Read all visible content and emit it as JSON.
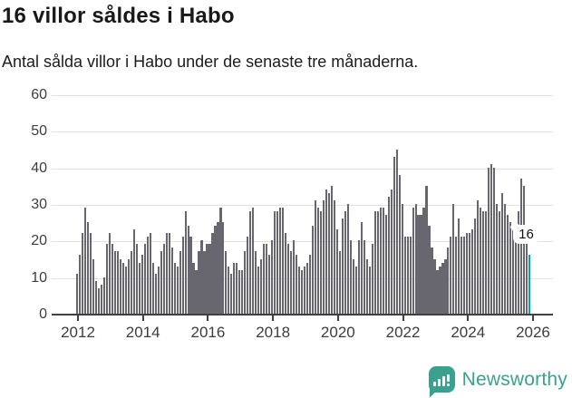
{
  "header": {
    "title": "16 villor såldes i Habo",
    "subtitle": "Antal sålda villor i Habo under de senaste tre månaderna."
  },
  "chart_data": {
    "type": "bar",
    "title": "16 villor såldes i Habo",
    "subtitle": "Antal sålda villor i Habo under de senaste tre månaderna.",
    "x_start_year": 2012,
    "frequency": "monthly",
    "values": [
      11,
      16,
      22,
      29,
      25,
      22,
      15,
      9,
      7,
      8,
      10,
      19,
      22,
      19,
      17,
      17,
      15,
      14,
      13,
      15,
      17,
      23,
      19,
      14,
      16,
      19,
      21,
      22,
      14,
      11,
      13,
      17,
      19,
      22,
      22,
      18,
      14,
      13,
      17,
      21,
      28,
      24,
      21,
      14,
      12,
      17,
      20,
      17,
      19,
      19,
      22,
      24,
      25,
      29,
      25,
      17,
      13,
      11,
      14,
      14,
      12,
      12,
      17,
      21,
      28,
      29,
      17,
      13,
      15,
      19,
      19,
      16,
      20,
      28,
      28,
      29,
      29,
      22,
      19,
      17,
      20,
      16,
      13,
      12,
      13,
      14,
      16,
      24,
      31,
      29,
      28,
      31,
      34,
      33,
      35,
      31,
      23,
      17,
      26,
      28,
      30,
      20,
      15,
      13,
      20,
      25,
      20,
      15,
      13,
      19,
      28,
      28,
      29,
      29,
      27,
      32,
      34,
      43,
      45,
      38,
      30,
      21,
      21,
      21,
      29,
      30,
      27,
      27,
      29,
      35,
      24,
      18,
      15,
      12,
      13,
      14,
      15,
      18,
      21,
      30,
      21,
      26,
      21,
      21,
      22,
      22,
      23,
      26,
      31,
      29,
      28,
      28,
      40,
      41,
      40,
      30,
      28,
      33,
      30,
      27,
      25,
      24,
      25,
      28,
      37,
      35,
      24,
      16
    ],
    "highlight_last_bar": true,
    "highlight_value": 16,
    "annotation": {
      "text": "16"
    },
    "ylim": [
      0,
      60
    ],
    "yticks": [
      0,
      10,
      20,
      30,
      40,
      50,
      60
    ],
    "xticks": [
      "2012",
      "2014",
      "2016",
      "2018",
      "2020",
      "2022",
      "2024",
      "2026"
    ],
    "grid": "horizontal",
    "legend": "none",
    "bar_color": "#68676f",
    "highlight_color": "#00a6b4"
  },
  "branding": {
    "logo_text": "Newsworthy",
    "logo_color": "#3ba18f",
    "logo_icon": "bar-chart-speech-bubble-icon"
  }
}
